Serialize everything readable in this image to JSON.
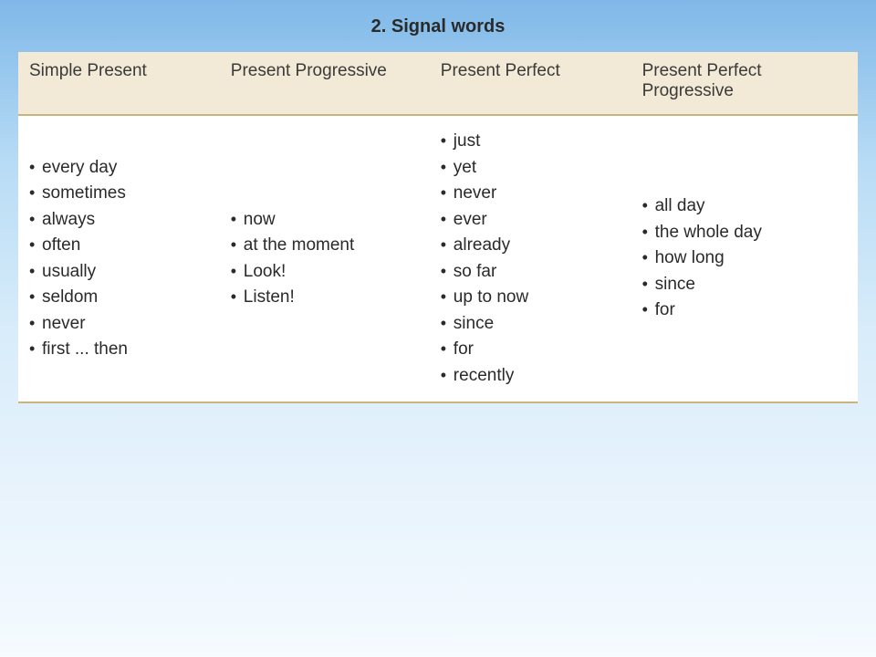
{
  "title": "2. Signal words",
  "table": {
    "type": "table",
    "header_bg": "#f2ead6",
    "border_color": "#c9b47a",
    "cell_bg": "#ffffff",
    "font_family": "Trebuchet MS",
    "header_fontsize": 19,
    "cell_fontsize": 19,
    "columns": [
      {
        "label": "Simple Present",
        "width_pct": 24
      },
      {
        "label": "Present Progressive",
        "width_pct": 25
      },
      {
        "label": "Present Perfect",
        "width_pct": 24
      },
      {
        "label": "Present Perfect Progressive",
        "width_pct": 27
      }
    ],
    "rows": [
      [
        [
          "every day",
          "sometimes",
          "always",
          "often",
          "usually",
          "seldom",
          "never",
          "first ... then"
        ],
        [
          "now",
          "at the moment",
          "Look!",
          "Listen!"
        ],
        [
          "just",
          "yet",
          "never",
          "ever",
          "already",
          "so far",
          "up to now",
          "since",
          "for",
          "recently"
        ],
        [
          "all day",
          "the whole day",
          "how long",
          "since",
          "for"
        ]
      ]
    ]
  },
  "background_gradient": [
    "#7fb8e8",
    "#b8dcf5",
    "#d8ecfa",
    "#e8f3fc",
    "#f5fbff"
  ]
}
